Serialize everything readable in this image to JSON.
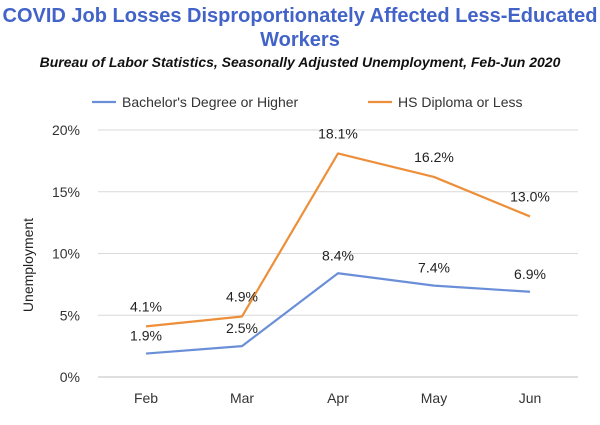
{
  "chart_data": {
    "type": "line",
    "title_line1": "COVID Job Losses Disproportionately Affected Less-Educated",
    "title_line2": "Workers",
    "subtitle": "Bureau of Labor Statistics, Seasonally Adjusted Unemployment, Feb-Jun 2020",
    "ylabel": "Unemployment",
    "xlabel": "",
    "categories": [
      "Feb",
      "Mar",
      "Apr",
      "May",
      "Jun"
    ],
    "ylim": [
      0,
      20
    ],
    "yticks": [
      0,
      5,
      10,
      15,
      20
    ],
    "ytick_labels": [
      "0%",
      "5%",
      "10%",
      "15%",
      "20%"
    ],
    "grid": "horizontal",
    "legend_position": "top",
    "series": [
      {
        "name": "Bachelor's Degree or Higher",
        "color": "#6a8fd8",
        "values": [
          1.9,
          2.5,
          8.4,
          7.4,
          6.9
        ],
        "labels": [
          "1.9%",
          "2.5%",
          "8.4%",
          "7.4%",
          "6.9%"
        ]
      },
      {
        "name": "HS Diploma or Less",
        "color": "#ed8f3a",
        "values": [
          4.1,
          4.9,
          18.1,
          16.2,
          13.0
        ],
        "labels": [
          "4.1%",
          "4.9%",
          "18.1%",
          "16.2%",
          "13.0%"
        ]
      }
    ]
  }
}
